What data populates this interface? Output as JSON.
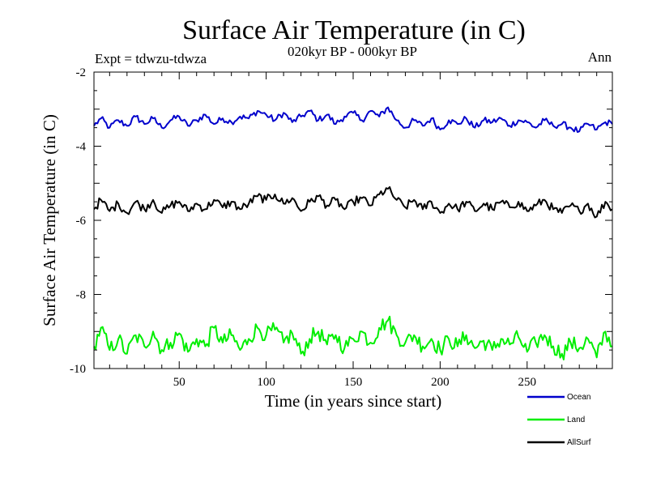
{
  "chart_data": {
    "type": "line",
    "title": "Surface Air Temperature (in C)",
    "subtitle": "020kyr BP - 000kyr BP",
    "experiment": "Expt = tdwzu-tdwza",
    "season": "Ann",
    "xlabel": "Time (in years since start)",
    "ylabel": "Surface Air Temperature (in C)",
    "xlim": [
      1,
      299
    ],
    "ylim": [
      -10,
      -2
    ],
    "x_ticks": [
      50,
      100,
      150,
      200,
      250
    ],
    "x_tick_labels": [
      "50",
      "100",
      "150",
      "200",
      "250"
    ],
    "y_ticks": [
      -10,
      -8,
      -6,
      -4,
      -2
    ],
    "y_tick_labels": [
      "-10",
      "-8",
      "-6",
      "-4",
      "-2"
    ],
    "grid": false,
    "legend_position": "bottom-right",
    "series": [
      {
        "name": "Ocean",
        "color": "#0000cc",
        "x": [
          1,
          5,
          10,
          15,
          20,
          25,
          30,
          35,
          40,
          45,
          50,
          55,
          60,
          65,
          70,
          75,
          80,
          85,
          90,
          95,
          100,
          105,
          110,
          115,
          120,
          125,
          130,
          135,
          140,
          145,
          150,
          155,
          160,
          165,
          170,
          175,
          180,
          185,
          190,
          195,
          200,
          205,
          210,
          215,
          220,
          225,
          230,
          235,
          240,
          245,
          250,
          255,
          260,
          265,
          270,
          275,
          280,
          285,
          290,
          295,
          299
        ],
        "y": [
          -3.45,
          -3.25,
          -3.5,
          -3.3,
          -3.45,
          -3.2,
          -3.4,
          -3.25,
          -3.5,
          -3.3,
          -3.2,
          -3.45,
          -3.3,
          -3.15,
          -3.4,
          -3.25,
          -3.35,
          -3.2,
          -3.25,
          -3.05,
          -3.15,
          -3.3,
          -3.1,
          -3.35,
          -3.2,
          -3.05,
          -3.3,
          -3.15,
          -3.4,
          -3.2,
          -3.1,
          -3.3,
          -3.05,
          -3.2,
          -2.95,
          -3.3,
          -3.5,
          -3.3,
          -3.45,
          -3.25,
          -3.55,
          -3.3,
          -3.4,
          -3.25,
          -3.5,
          -3.3,
          -3.35,
          -3.25,
          -3.45,
          -3.3,
          -3.35,
          -3.5,
          -3.3,
          -3.45,
          -3.4,
          -3.5,
          -3.6,
          -3.4,
          -3.55,
          -3.35,
          -3.4
        ]
      },
      {
        "name": "Land",
        "color": "#00ee00",
        "x": [
          1,
          5,
          10,
          15,
          20,
          25,
          30,
          35,
          40,
          45,
          50,
          55,
          60,
          65,
          70,
          75,
          80,
          85,
          90,
          95,
          100,
          105,
          110,
          115,
          120,
          125,
          130,
          135,
          140,
          145,
          150,
          155,
          160,
          165,
          170,
          175,
          180,
          185,
          190,
          195,
          200,
          205,
          210,
          215,
          220,
          225,
          230,
          235,
          240,
          245,
          250,
          255,
          260,
          265,
          270,
          275,
          280,
          285,
          290,
          295,
          299
        ],
        "y": [
          -9.4,
          -8.9,
          -9.5,
          -9.2,
          -9.6,
          -9.1,
          -9.4,
          -9.0,
          -9.5,
          -9.3,
          -9.05,
          -9.55,
          -9.2,
          -9.4,
          -8.9,
          -9.3,
          -9.1,
          -9.5,
          -9.2,
          -8.9,
          -9.1,
          -8.95,
          -9.3,
          -9.05,
          -9.6,
          -9.2,
          -9.0,
          -9.35,
          -9.1,
          -9.45,
          -9.2,
          -9.0,
          -9.3,
          -8.9,
          -8.7,
          -9.1,
          -9.3,
          -9.1,
          -9.4,
          -9.2,
          -9.5,
          -9.2,
          -9.4,
          -9.1,
          -9.45,
          -9.25,
          -9.5,
          -9.2,
          -9.35,
          -9.15,
          -9.55,
          -9.3,
          -9.1,
          -9.4,
          -9.6,
          -9.3,
          -9.45,
          -9.2,
          -9.7,
          -9.0,
          -9.4
        ]
      },
      {
        "name": "AllSurf",
        "color": "#000000",
        "x": [
          1,
          5,
          10,
          15,
          20,
          25,
          30,
          35,
          40,
          45,
          50,
          55,
          60,
          65,
          70,
          75,
          80,
          85,
          90,
          95,
          100,
          105,
          110,
          115,
          120,
          125,
          130,
          135,
          140,
          145,
          150,
          155,
          160,
          165,
          170,
          175,
          180,
          185,
          190,
          195,
          200,
          205,
          210,
          215,
          220,
          225,
          230,
          235,
          240,
          245,
          250,
          255,
          260,
          265,
          270,
          275,
          280,
          285,
          290,
          295,
          299
        ],
        "y": [
          -5.7,
          -5.45,
          -5.75,
          -5.55,
          -5.8,
          -5.5,
          -5.7,
          -5.45,
          -5.8,
          -5.6,
          -5.5,
          -5.75,
          -5.55,
          -5.7,
          -5.45,
          -5.65,
          -5.5,
          -5.7,
          -5.55,
          -5.35,
          -5.45,
          -5.3,
          -5.55,
          -5.4,
          -5.75,
          -5.5,
          -5.35,
          -5.6,
          -5.45,
          -5.7,
          -5.5,
          -5.4,
          -5.6,
          -5.3,
          -5.15,
          -5.45,
          -5.65,
          -5.45,
          -5.7,
          -5.5,
          -5.8,
          -5.55,
          -5.7,
          -5.5,
          -5.75,
          -5.55,
          -5.7,
          -5.5,
          -5.65,
          -5.5,
          -5.75,
          -5.6,
          -5.45,
          -5.7,
          -5.8,
          -5.6,
          -5.75,
          -5.55,
          -5.9,
          -5.5,
          -5.7
        ]
      }
    ]
  }
}
